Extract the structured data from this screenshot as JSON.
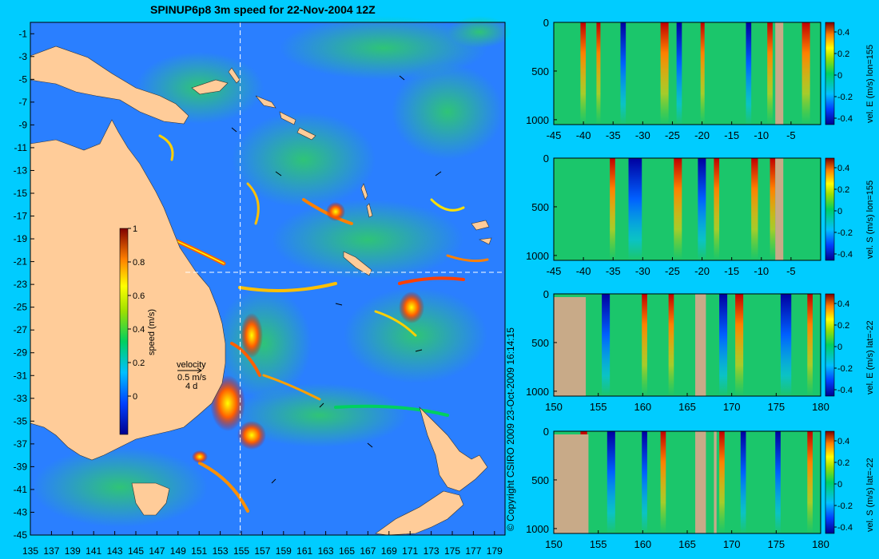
{
  "title": "SPINUP6p8 3m speed for 22-Nov-2004 12Z",
  "copyright": "© Copyright CSIRO 2009   23-Oct-2009 16:14:15",
  "map": {
    "lon_range": [
      135,
      180
    ],
    "lat_range": [
      -45,
      0
    ],
    "lon_ticks": [
      "135",
      "137",
      "139",
      "141",
      "143",
      "145",
      "147",
      "149",
      "151",
      "153",
      "155",
      "157",
      "159",
      "161",
      "163",
      "165",
      "167",
      "169",
      "171",
      "173",
      "175",
      "177",
      "179"
    ],
    "lat_ticks": [
      "-1",
      "-3",
      "-5",
      "-7",
      "-9",
      "-11",
      "-13",
      "-15",
      "-17",
      "-19",
      "-21",
      "-23",
      "-25",
      "-27",
      "-29",
      "-31",
      "-33",
      "-35",
      "-37",
      "-39",
      "-41",
      "-43",
      "-45"
    ],
    "crosshair_lon": 155,
    "crosshair_lat": -22,
    "colors": {
      "ocean": "#2a7fff",
      "land": "#ffcc99"
    },
    "colorbar": {
      "label": "speed (m/s)",
      "ticks": [
        "1",
        "0.8",
        "0.6",
        "0.4",
        "0.2",
        "0"
      ]
    },
    "velocity_key": {
      "title": "velocity",
      "speed": "0.5 m/s",
      "duration": "4 d"
    }
  },
  "sections": [
    {
      "label": "vel. E (m/s) lon=155",
      "x_ticks": [
        "-45",
        "-40",
        "-35",
        "-30",
        "-25",
        "-20",
        "-15",
        "-10",
        "-5"
      ],
      "x_range": [
        -45,
        0
      ],
      "y_ticks": [
        "0",
        "500",
        "1000"
      ],
      "cb_ticks": [
        "0.4",
        "0.2",
        "0",
        "-0.2",
        "-0.4"
      ]
    },
    {
      "label": "vel. S (m/s) lon=155",
      "x_ticks": [
        "-45",
        "-40",
        "-35",
        "-30",
        "-25",
        "-20",
        "-15",
        "-10",
        "-5"
      ],
      "x_range": [
        -45,
        0
      ],
      "y_ticks": [
        "0",
        "500",
        "1000"
      ],
      "cb_ticks": [
        "0.4",
        "0.2",
        "0",
        "-0.2",
        "-0.4"
      ]
    },
    {
      "label": "vel. E (m/s) lat=-22",
      "x_ticks": [
        "150",
        "155",
        "160",
        "165",
        "170",
        "175",
        "180"
      ],
      "x_range": [
        150,
        180
      ],
      "y_ticks": [
        "0",
        "500",
        "1000"
      ],
      "cb_ticks": [
        "0.4",
        "0.2",
        "0",
        "-0.2",
        "-0.4"
      ]
    },
    {
      "label": "vel. S (m/s) lat=-22",
      "x_ticks": [
        "150",
        "155",
        "160",
        "165",
        "170",
        "175",
        "180"
      ],
      "x_range": [
        150,
        180
      ],
      "y_ticks": [
        "0",
        "500",
        "1000"
      ],
      "cb_ticks": [
        "0.4",
        "0.2",
        "0",
        "-0.2",
        "-0.4"
      ]
    }
  ]
}
